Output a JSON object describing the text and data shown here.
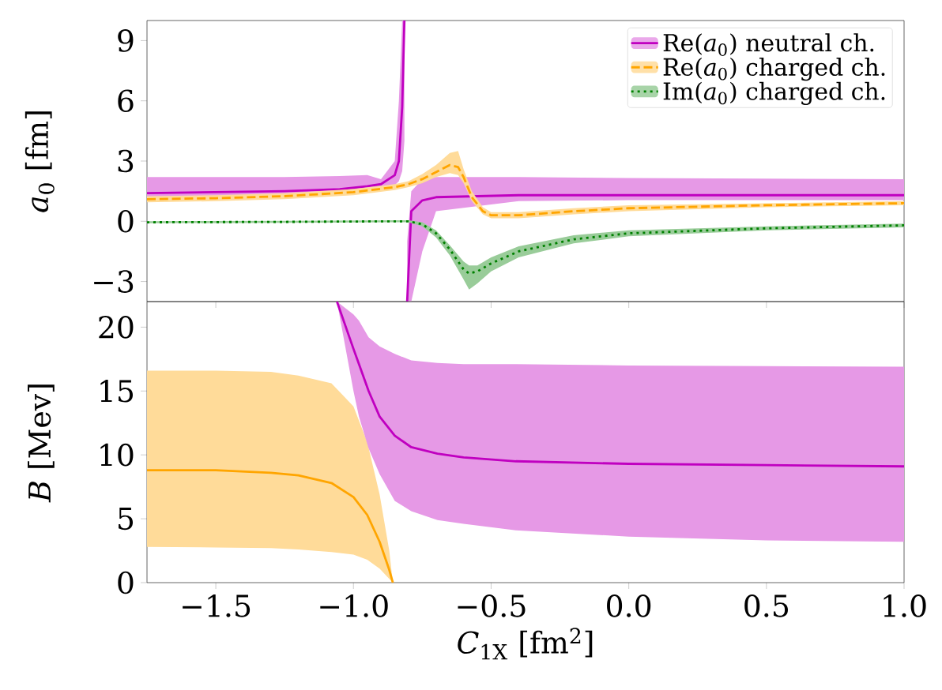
{
  "chart_data": [
    {
      "type": "line",
      "ylabel": "*a*$_{0}$ [fm]",
      "xlim": [
        -1.75,
        1.0
      ],
      "ylim": [
        -4,
        10
      ],
      "xticks": [
        {
          "value": -1.5,
          "label": null
        },
        {
          "value": -1.0,
          "label": null
        },
        {
          "value": -0.5,
          "label": null
        },
        {
          "value": 0.0,
          "label": null
        },
        {
          "value": 0.5,
          "label": null
        },
        {
          "value": 1.0,
          "label": null
        }
      ],
      "yticks": [
        {
          "value": -3,
          "label": "−3"
        },
        0,
        3,
        6,
        9
      ],
      "tick_labels": "y",
      "legend": "top right",
      "series": [
        {
          "name": "Re(*a*$_{0}$) neutral ch.",
          "color": "#c000c0",
          "line_style": "solid",
          "x": [
            -1.75,
            -1.25,
            -1.05,
            -0.95,
            -0.9,
            -0.85,
            -0.835,
            -0.823,
            -0.815,
            -0.81,
            -0.805,
            -0.79,
            -0.75,
            -0.7,
            -0.4,
            0,
            1.0
          ],
          "values": [
            1.4,
            1.5,
            1.6,
            1.75,
            1.85,
            2.3,
            3.0,
            5.7,
            10,
            null,
            -4,
            0.5,
            1.04,
            1.2,
            1.3,
            1.3,
            1.3
          ],
          "lower": [
            1.15,
            1.2,
            1.3,
            1.45,
            1.6,
            1.8,
            2.0,
            2.5,
            4,
            null,
            -4,
            -4,
            -1.5,
            0.5,
            1.0,
            1.05,
            1.05
          ],
          "upper": [
            2.2,
            2.2,
            2.25,
            2.3,
            2.1,
            3.0,
            6.0,
            10,
            10,
            null,
            -1,
            1.5,
            2.1,
            2.2,
            2.2,
            2.15,
            2.1
          ]
        },
        {
          "name": "Re(*a*$_{0}$) charged ch.",
          "color": "#ffa500",
          "line_style": "dashed",
          "x": [
            -1.75,
            -1.5,
            -1.25,
            -1.0,
            -0.85,
            -0.8,
            -0.75,
            -0.7,
            -0.65,
            -0.62,
            -0.6,
            -0.57,
            -0.53,
            -0.5,
            -0.4,
            -0.2,
            0,
            0.5,
            1.0
          ],
          "values": [
            1.1,
            1.15,
            1.25,
            1.45,
            1.7,
            1.85,
            2.1,
            2.45,
            2.8,
            2.7,
            2.2,
            1.2,
            0.5,
            0.3,
            0.3,
            0.5,
            0.65,
            0.8,
            0.9
          ],
          "lower": [
            0.95,
            1.0,
            1.1,
            1.3,
            1.55,
            1.7,
            1.9,
            2.2,
            2.4,
            2.3,
            1.9,
            1.0,
            0.35,
            0.15,
            0.15,
            0.35,
            0.5,
            0.7,
            0.8
          ],
          "upper": [
            1.25,
            1.3,
            1.4,
            1.6,
            1.85,
            2.0,
            2.35,
            2.8,
            3.4,
            3.5,
            2.6,
            1.5,
            0.7,
            0.45,
            0.45,
            0.65,
            0.8,
            0.9,
            1.0
          ]
        },
        {
          "name": "Im(*a*$_{0}$) charged ch.",
          "color": "#008000",
          "line_style": "dotted",
          "x": [
            -1.75,
            -1.25,
            -0.85,
            -0.8,
            -0.75,
            -0.7,
            -0.65,
            -0.6,
            -0.58,
            -0.55,
            -0.5,
            -0.4,
            -0.2,
            0,
            0.5,
            1.0
          ],
          "values": [
            -0.05,
            -0.03,
            0.0,
            0.0,
            -0.15,
            -0.6,
            -1.4,
            -2.4,
            -2.6,
            -2.5,
            -2.1,
            -1.5,
            -0.9,
            -0.6,
            -0.35,
            -0.2
          ],
          "lower": [
            -0.1,
            -0.08,
            -0.05,
            -0.05,
            -0.25,
            -0.8,
            -1.7,
            -2.9,
            -3.4,
            -3.1,
            -2.5,
            -1.8,
            -1.1,
            -0.75,
            -0.45,
            -0.3
          ],
          "upper": [
            0.0,
            0.02,
            0.05,
            0.05,
            -0.05,
            -0.45,
            -1.2,
            -2.0,
            -2.2,
            -2.2,
            -1.8,
            -1.25,
            -0.7,
            -0.45,
            -0.25,
            -0.12
          ]
        }
      ]
    },
    {
      "type": "line",
      "xlabel": "*C*$_{1X}$ [fm$^{2}$]",
      "ylabel": "*B* [Mev]",
      "xlim": [
        -1.75,
        1.0
      ],
      "ylim": [
        0,
        22
      ],
      "xticks": [
        {
          "value": -1.5,
          "label": "−1.5"
        },
        {
          "value": -1.0,
          "label": "−1.0"
        },
        {
          "value": -0.5,
          "label": "−0.5"
        },
        {
          "value": 0.0,
          "label": "0.0"
        },
        {
          "value": 0.5,
          "label": "0.5"
        },
        {
          "value": 1.0,
          "label": "1.0"
        }
      ],
      "yticks": [
        0,
        5,
        10,
        15,
        20
      ],
      "series": [
        {
          "color": "#ffa500",
          "line_style": "solid",
          "x": [
            -1.75,
            -1.5,
            -1.3,
            -1.2,
            -1.08,
            -1.0,
            -0.95,
            -0.905,
            -0.87,
            -0.857
          ],
          "values": [
            8.8,
            8.8,
            8.6,
            8.4,
            7.8,
            6.7,
            5.3,
            3.2,
            1.0,
            0
          ],
          "lower": [
            2.8,
            2.75,
            2.7,
            2.6,
            2.4,
            2.2,
            1.8,
            1.1,
            0.3,
            0
          ],
          "upper": [
            16.6,
            16.6,
            16.5,
            16.2,
            15.6,
            13.8,
            11.0,
            6.9,
            2.5,
            0
          ]
        },
        {
          "color": "#c000c0",
          "line_style": "solid",
          "x": [
            -1.06,
            -1.0,
            -0.98,
            -0.945,
            -0.905,
            -0.85,
            -0.79,
            -0.695,
            -0.6,
            -0.41,
            0,
            0.5,
            1.0
          ],
          "values": [
            22,
            18.3,
            17.1,
            15,
            13,
            11.5,
            10.6,
            10.1,
            9.8,
            9.5,
            9.3,
            9.2,
            9.1
          ],
          "lower": [
            22,
            15,
            13.0,
            10.5,
            8.5,
            6.4,
            5.6,
            4.9,
            4.6,
            4.1,
            3.6,
            3.3,
            3.2
          ],
          "upper": [
            22,
            21,
            20.5,
            19.2,
            18.5,
            17.9,
            17.4,
            17.2,
            17.1,
            17.1,
            17.0,
            16.95,
            16.9
          ]
        }
      ]
    }
  ]
}
